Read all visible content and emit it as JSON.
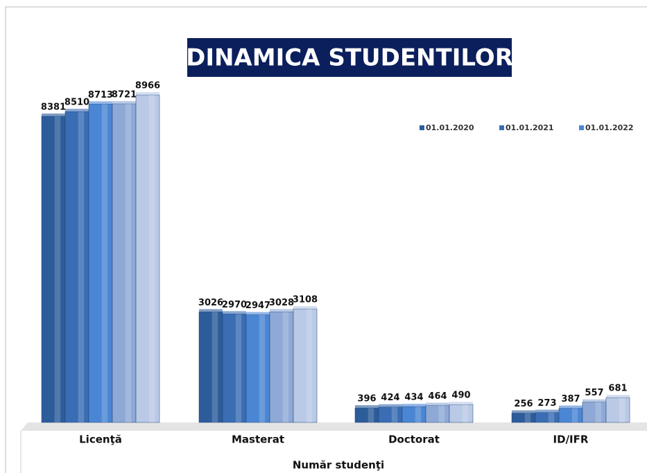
{
  "chart_data": {
    "type": "bar",
    "title": "DINAMICA STUDENTILOR",
    "x_label": "Număr studenţi",
    "categories": [
      "Licenţă",
      "Masterat",
      "Doctorat",
      "ID/IFR"
    ],
    "series": [
      {
        "name": "01.01.2020",
        "color": "#2d5c9a",
        "values": [
          8381,
          3026,
          396,
          256
        ]
      },
      {
        "name": "01.01.2021",
        "color": "#3a6db3",
        "values": [
          8510,
          2970,
          424,
          273
        ]
      },
      {
        "name": "01.01.2022",
        "color": "#4a86d4",
        "values": [
          8713,
          2947,
          434,
          387
        ]
      },
      {
        "color": "#8ea9d6",
        "values": [
          8721,
          3028,
          464,
          557
        ]
      },
      {
        "color": "#b9c9e6",
        "values": [
          8966,
          3108,
          490,
          681
        ]
      }
    ]
  }
}
